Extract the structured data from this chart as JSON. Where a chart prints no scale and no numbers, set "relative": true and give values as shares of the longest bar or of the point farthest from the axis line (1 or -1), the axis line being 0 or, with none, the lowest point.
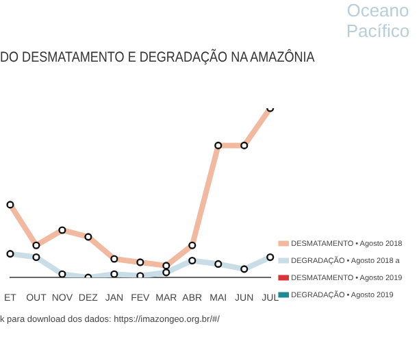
{
  "chart_data": {
    "type": "line",
    "relative": true,
    "title": "DO DESMATAMENTO E DEGRADAÇÃO NA AMAZÔNIA",
    "categories": [
      "ET",
      "OUT",
      "NOV",
      "DEZ",
      "JAN",
      "FEV",
      "MAR",
      "ABR",
      "MAI",
      "JUN",
      "JUL"
    ],
    "series": [
      {
        "name": "DESMATAMENTO • Agosto 2018",
        "color": "#f0b9a0",
        "values": [
          0.43,
          0.19,
          0.28,
          0.24,
          0.11,
          0.09,
          0.07,
          0.19,
          0.78,
          0.78,
          1
        ]
      },
      {
        "name": "DEGRADAÇÃO • Agosto 2018 a",
        "color": "#c9dde6",
        "values": [
          0.14,
          0.12,
          0.02,
          0,
          0.02,
          0.01,
          0.03,
          0.1,
          0.08,
          0.05,
          0.12
        ]
      },
      {
        "name": "DESMATAMENTO • Agosto 2019",
        "color": "#d9343a",
        "values": [
          null,
          null,
          null,
          null,
          null,
          null,
          null,
          null,
          null,
          null,
          null
        ]
      },
      {
        "name": "DEGRADAÇÃO • Agosto 2019",
        "color": "#1f8a94",
        "values": [
          null,
          null,
          null,
          null,
          null,
          null,
          null,
          null,
          null,
          null,
          null
        ]
      }
    ],
    "marker": "circle",
    "legend": "right",
    "annotations": [
      "Oceano Pacífico",
      "k para download dos dados: https://imazongeo.org.br/#/"
    ]
  }
}
